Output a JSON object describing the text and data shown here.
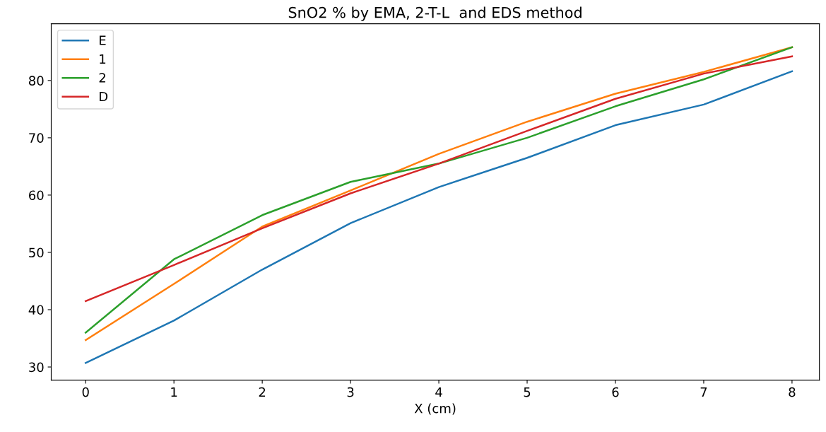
{
  "chart_data": {
    "type": "line",
    "title": "SnO2 % by EMA, 2-T-L  and EDS method",
    "xlabel": "X (cm)",
    "x": [
      0,
      1,
      2,
      3,
      4,
      5,
      6,
      7,
      8
    ],
    "series": [
      {
        "name": "E",
        "color": "#1f77b4",
        "values": [
          30.7,
          38.1,
          47.0,
          55.1,
          61.4,
          66.5,
          72.2,
          75.8,
          81.6
        ]
      },
      {
        "name": "1",
        "color": "#ff7f0e",
        "values": [
          34.7,
          44.5,
          54.5,
          60.8,
          67.2,
          72.8,
          77.7,
          81.5,
          85.8
        ]
      },
      {
        "name": "2",
        "color": "#2ca02c",
        "values": [
          36.0,
          48.8,
          56.5,
          62.3,
          65.5,
          70.0,
          75.5,
          80.2,
          85.8
        ]
      },
      {
        "name": "D",
        "color": "#d62728",
        "values": [
          41.5,
          47.8,
          54.2,
          60.3,
          65.5,
          71.2,
          76.8,
          81.2,
          84.2
        ]
      }
    ],
    "xlim": [
      -0.39,
      8.31
    ],
    "ylim": [
      27.7,
      89.9
    ],
    "xticks": [
      0,
      1,
      2,
      3,
      4,
      5,
      6,
      7,
      8
    ],
    "yticks": [
      30,
      40,
      50,
      60,
      70,
      80
    ],
    "grid": false,
    "legend": "top left",
    "marker": "none",
    "line_style": "solid"
  }
}
